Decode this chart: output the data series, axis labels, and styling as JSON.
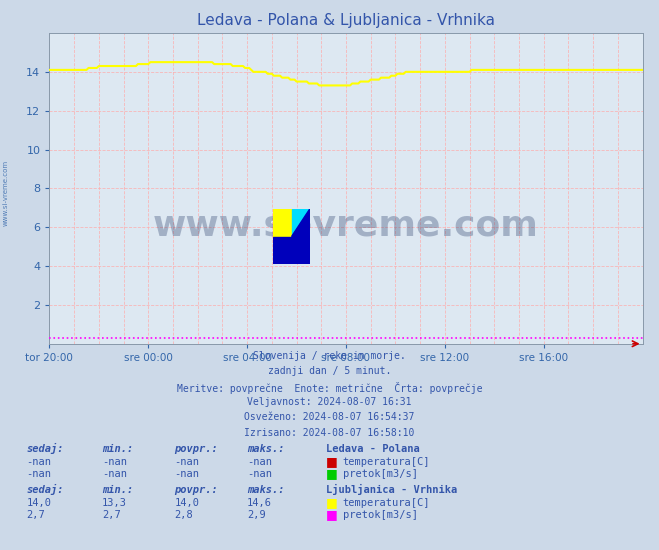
{
  "title": "Ledava - Polana & Ljubljanica - Vrhnika",
  "title_color": "#3355aa",
  "bg_color": "#ccd9e8",
  "plot_bg_color": "#dde8f2",
  "grid_color": "#ffaaaa",
  "watermark_text": "www.si-vreme.com",
  "watermark_color": "#1a3060",
  "watermark_alpha": 0.3,
  "tick_color": "#3366aa",
  "xlim": [
    0,
    288
  ],
  "ylim": [
    0,
    16
  ],
  "yticks": [
    2,
    4,
    6,
    8,
    10,
    12,
    14
  ],
  "xtick_labels": [
    "tor 20:00",
    "sre 00:00",
    "sre 04:00",
    "sre 08:00",
    "sre 12:00",
    "sre 16:00"
  ],
  "xtick_positions": [
    0,
    48,
    96,
    144,
    192,
    240
  ],
  "vline_positions": [
    0,
    12,
    24,
    36,
    48,
    60,
    72,
    84,
    96,
    108,
    120,
    132,
    144,
    156,
    168,
    180,
    192,
    204,
    216,
    228,
    240,
    252,
    264,
    276,
    288
  ],
  "info_lines": [
    "Slovenija / reke in morje.",
    "zadnji dan / 5 minut.",
    "Meritve: povprečne  Enote: metrične  Črta: povprečje",
    "Veljavnost: 2024-08-07 16:31",
    "Osveženo: 2024-08-07 16:54:37",
    "Izrisano: 2024-08-07 16:58:10"
  ],
  "info_color": "#3355aa",
  "legend_station1": "Ledava - Polana",
  "legend_station2": "Ljubljanica - Vrhnika",
  "legend_temp_color1": "#cc0000",
  "legend_flow_color1": "#00cc00",
  "legend_temp_color2": "#ffff00",
  "legend_flow_color2": "#ff00ff",
  "legend_color": "#3355aa",
  "table_header": [
    "sedaj:",
    "min.:",
    "povpr.:",
    "maks.:"
  ],
  "station1_temp": [
    "-nan",
    "-nan",
    "-nan",
    "-nan"
  ],
  "station1_flow": [
    "-nan",
    "-nan",
    "-nan",
    "-nan"
  ],
  "station2_temp": [
    "14,0",
    "13,3",
    "14,0",
    "14,6"
  ],
  "station2_flow": [
    "2,7",
    "2,7",
    "2,8",
    "2,9"
  ],
  "sidebar_text": "www.si-vreme.com",
  "sidebar_color": "#3366aa",
  "temp2_data": [
    14.1,
    14.1,
    14.1,
    14.1,
    14.1,
    14.1,
    14.1,
    14.1,
    14.1,
    14.1,
    14.1,
    14.1,
    14.1,
    14.1,
    14.1,
    14.1,
    14.1,
    14.1,
    14.1,
    14.2,
    14.2,
    14.2,
    14.2,
    14.2,
    14.3,
    14.3,
    14.3,
    14.3,
    14.3,
    14.3,
    14.3,
    14.3,
    14.3,
    14.3,
    14.3,
    14.3,
    14.3,
    14.3,
    14.3,
    14.3,
    14.3,
    14.3,
    14.3,
    14.4,
    14.4,
    14.4,
    14.4,
    14.4,
    14.4,
    14.5,
    14.5,
    14.5,
    14.5,
    14.5,
    14.5,
    14.5,
    14.5,
    14.5,
    14.5,
    14.5,
    14.5,
    14.5,
    14.5,
    14.5,
    14.5,
    14.5,
    14.5,
    14.5,
    14.5,
    14.5,
    14.5,
    14.5,
    14.5,
    14.5,
    14.5,
    14.5,
    14.5,
    14.5,
    14.5,
    14.5,
    14.4,
    14.4,
    14.4,
    14.4,
    14.4,
    14.4,
    14.4,
    14.4,
    14.4,
    14.3,
    14.3,
    14.3,
    14.3,
    14.3,
    14.3,
    14.2,
    14.2,
    14.2,
    14.1,
    14.0,
    14.0,
    14.0,
    14.0,
    14.0,
    14.0,
    14.0,
    13.9,
    13.9,
    13.9,
    13.8,
    13.8,
    13.8,
    13.8,
    13.7,
    13.7,
    13.7,
    13.7,
    13.6,
    13.6,
    13.6,
    13.5,
    13.5,
    13.5,
    13.5,
    13.5,
    13.5,
    13.4,
    13.4,
    13.4,
    13.4,
    13.4,
    13.3,
    13.3,
    13.3,
    13.3,
    13.3,
    13.3,
    13.3,
    13.3,
    13.3,
    13.3,
    13.3,
    13.3,
    13.3,
    13.3,
    13.3,
    13.3,
    13.4,
    13.4,
    13.4,
    13.4,
    13.5,
    13.5,
    13.5,
    13.5,
    13.5,
    13.6,
    13.6,
    13.6,
    13.6,
    13.6,
    13.7,
    13.7,
    13.7,
    13.7,
    13.7,
    13.8,
    13.8,
    13.8,
    13.9,
    13.9,
    13.9,
    13.9,
    14.0,
    14.0,
    14.0,
    14.0,
    14.0,
    14.0,
    14.0,
    14.0,
    14.0,
    14.0,
    14.0,
    14.0,
    14.0,
    14.0,
    14.0,
    14.0,
    14.0,
    14.0,
    14.0,
    14.0,
    14.0,
    14.0,
    14.0,
    14.0,
    14.0,
    14.0,
    14.0,
    14.0,
    14.0,
    14.0,
    14.0,
    14.0,
    14.1,
    14.1,
    14.1,
    14.1,
    14.1,
    14.1,
    14.1,
    14.1,
    14.1,
    14.1,
    14.1,
    14.1,
    14.1,
    14.1,
    14.1,
    14.1,
    14.1,
    14.1,
    14.1,
    14.1,
    14.1,
    14.1,
    14.1,
    14.1,
    14.1,
    14.1,
    14.1,
    14.1,
    14.1,
    14.1,
    14.1,
    14.1,
    14.1,
    14.1,
    14.1,
    14.1,
    14.1,
    14.1,
    14.1,
    14.1,
    14.1,
    14.1,
    14.1,
    14.1,
    14.1,
    14.1,
    14.1,
    14.1,
    14.1,
    14.1,
    14.1,
    14.1,
    14.1,
    14.1,
    14.1,
    14.1,
    14.1,
    14.1,
    14.1,
    14.1,
    14.1,
    14.1,
    14.1,
    14.1,
    14.1,
    14.1,
    14.1,
    14.1,
    14.1,
    14.1,
    14.1,
    14.1,
    14.1,
    14.1,
    14.1,
    14.1,
    14.1,
    14.1,
    14.1,
    14.1,
    14.1,
    14.1,
    14.1,
    14.1
  ],
  "flow2_display": 0.3
}
